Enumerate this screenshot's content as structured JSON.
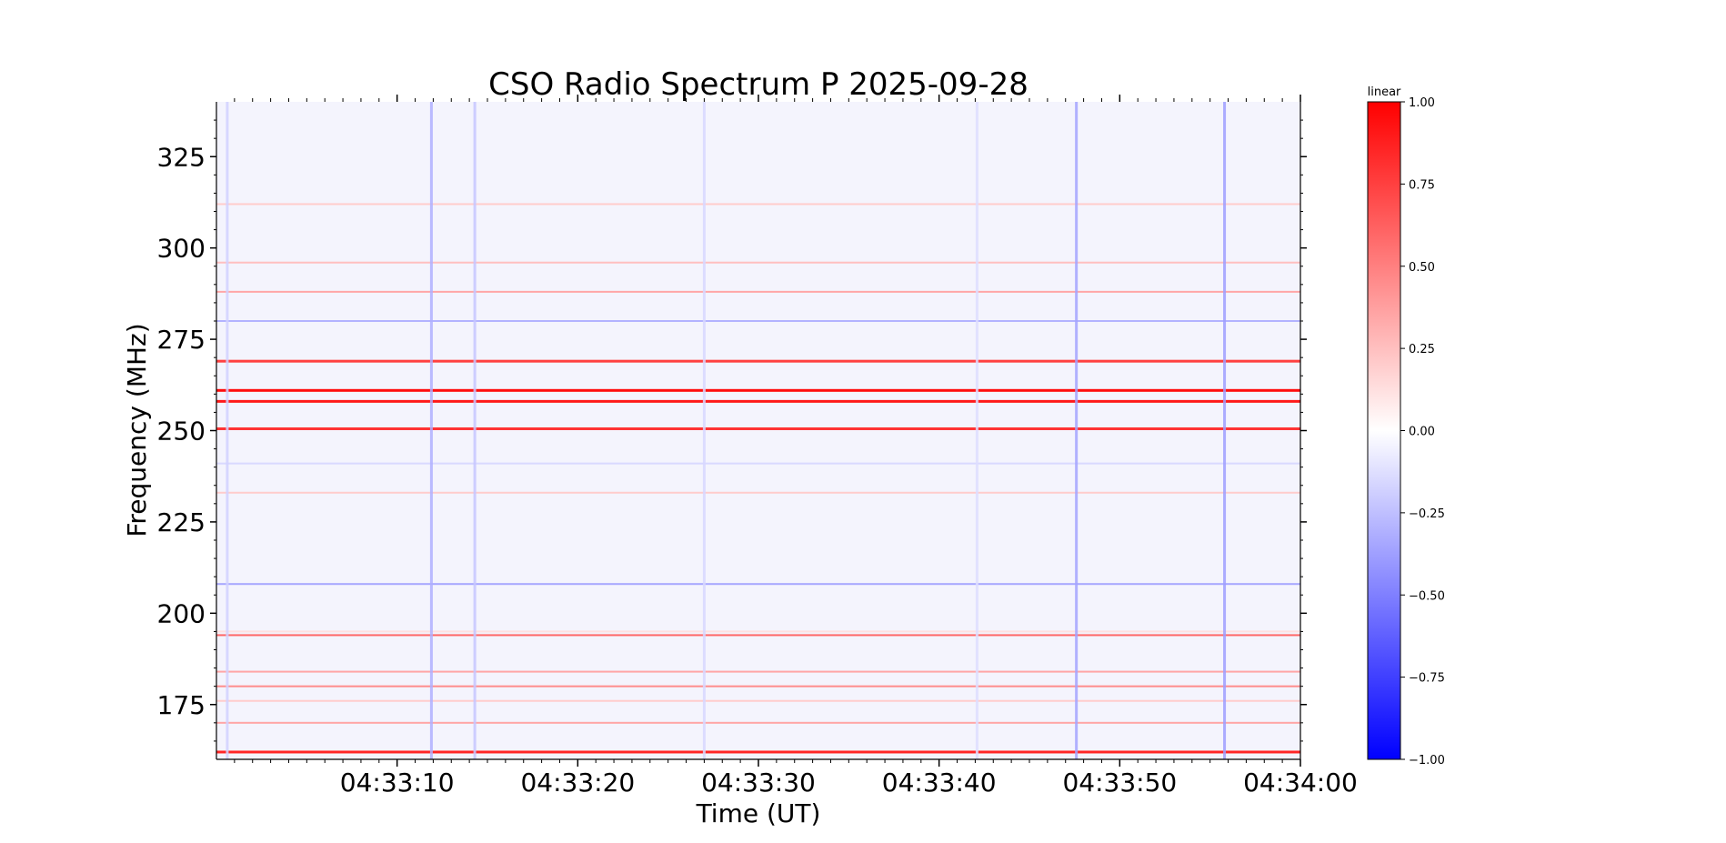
{
  "chart_data": {
    "type": "heatmap",
    "title": "CSO Radio Spectrum P 2025-09-28",
    "xlabel": "Time (UT)",
    "ylabel": "Frequency (MHz)",
    "x_ticks": [
      "04:33:10",
      "04:33:20",
      "04:33:30",
      "04:33:40",
      "04:33:50",
      "04:34:00"
    ],
    "xlim": [
      "04:33:00",
      "04:34:00"
    ],
    "y_ticks": [
      175,
      200,
      225,
      250,
      275,
      300,
      325
    ],
    "ylim": [
      160,
      340
    ],
    "colorbar": {
      "label": "linear",
      "ticks": [
        "1.00",
        "0.75",
        "0.50",
        "0.25",
        "0.00",
        "−0.25",
        "−0.50",
        "−0.75",
        "−1.00"
      ],
      "range": [
        -1.0,
        1.0
      ],
      "colormap": "bwr"
    },
    "horizontal_bands": [
      {
        "freq_mhz": 312,
        "value": 0.2
      },
      {
        "freq_mhz": 296,
        "value": 0.25
      },
      {
        "freq_mhz": 288,
        "value": 0.35
      },
      {
        "freq_mhz": 280,
        "value": -0.3
      },
      {
        "freq_mhz": 269,
        "value": 0.75
      },
      {
        "freq_mhz": 261,
        "value": 0.95
      },
      {
        "freq_mhz": 258,
        "value": 0.9
      },
      {
        "freq_mhz": 250.5,
        "value": 0.8
      },
      {
        "freq_mhz": 241,
        "value": -0.15
      },
      {
        "freq_mhz": 233,
        "value": 0.2
      },
      {
        "freq_mhz": 208,
        "value": -0.35
      },
      {
        "freq_mhz": 195,
        "value": 0.12
      },
      {
        "freq_mhz": 194,
        "value": 0.6
      },
      {
        "freq_mhz": 184,
        "value": 0.35
      },
      {
        "freq_mhz": 180,
        "value": 0.45
      },
      {
        "freq_mhz": 176,
        "value": 0.2
      },
      {
        "freq_mhz": 170,
        "value": 0.35
      },
      {
        "freq_mhz": 162,
        "value": 0.85
      }
    ],
    "vertical_bursts": [
      {
        "time": "04:33:00.6",
        "value": -0.4
      },
      {
        "time": "04:33:11.9",
        "value": -0.7
      },
      {
        "time": "04:33:14.3",
        "value": -0.5
      },
      {
        "time": "04:33:27.0",
        "value": -0.35
      },
      {
        "time": "04:33:42.1",
        "value": -0.3
      },
      {
        "time": "04:33:47.6",
        "value": -0.8
      },
      {
        "time": "04:33:55.8",
        "value": -0.85
      }
    ]
  }
}
